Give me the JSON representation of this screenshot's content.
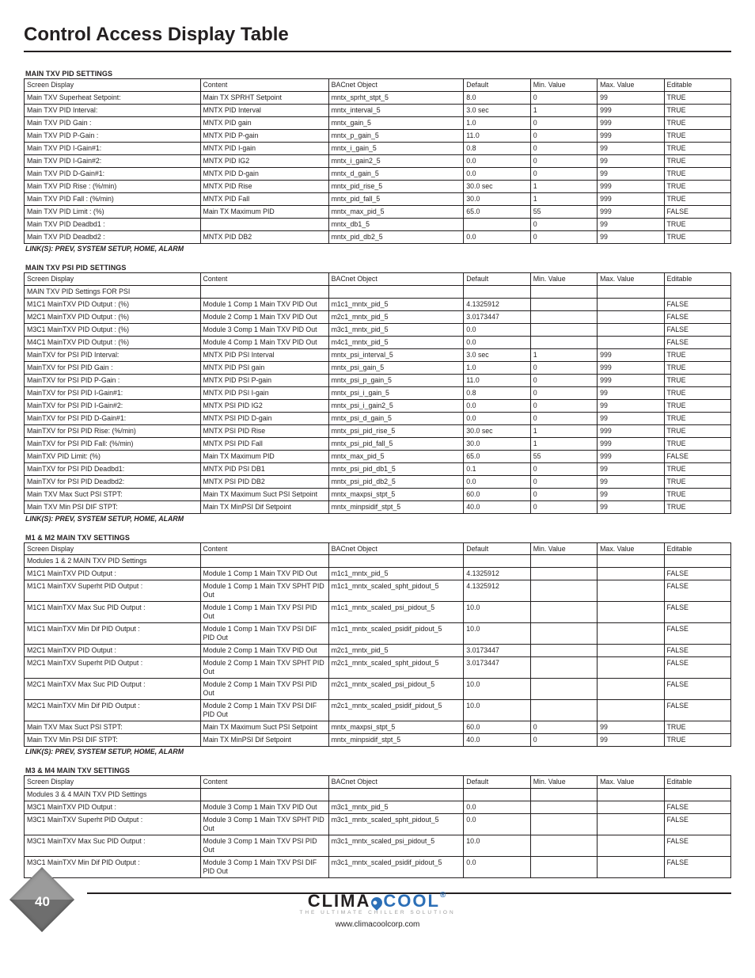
{
  "page": {
    "title": "Control Access Display Table",
    "number": "40",
    "brand": {
      "clima": "CLIMA",
      "cool": "COOL",
      "tag": "THE ULTIMATE CHILLER SOLUTION",
      "url": "www.climacoolcorp.com"
    },
    "link_note": "LINK(S): PREV, SYSTEM SETUP, HOME, ALARM"
  },
  "columns": [
    "Screen Display",
    "Content",
    "BACnet Object",
    "Default",
    "Min. Value",
    "Max. Value",
    "Editable"
  ],
  "tables": [
    {
      "title": "MAIN TXV PID SETTINGS",
      "rows": [
        [
          "Main TXV Superheat Setpoint:",
          "Main TX SPRHT Setpoint",
          "mntx_sprht_stpt_5",
          "8.0",
          "0",
          "99",
          "TRUE"
        ],
        [
          "Main  TXV  PID Interval:",
          "MNTX PID Interval",
          "mntx_interval_5",
          "3.0 sec",
          "1",
          "999",
          "TRUE"
        ],
        [
          "Main  TXV  PID Gain   :",
          "MNTX PID gain",
          "mntx_gain_5",
          "1.0",
          "0",
          "999",
          "TRUE"
        ],
        [
          "Main  TXV  PID P-Gain :",
          "MNTX PID P-gain",
          "mntx_p_gain_5",
          "11.0",
          "0",
          "999",
          "TRUE"
        ],
        [
          "Main  TXV  PID I-Gain#1:",
          "MNTX PID I-gain",
          "mntx_i_gain_5",
          "0.8",
          "0",
          "99",
          "TRUE"
        ],
        [
          "Main  TXV  PID I-Gain#2:",
          "MNTX PID IG2",
          "mntx_i_gain2_5",
          "0.0",
          "0",
          "99",
          "TRUE"
        ],
        [
          "Main  TXV  PID D-Gain#1:",
          "MNTX PID D-gain",
          "mntx_d_gain_5",
          "0.0",
          "0",
          "99",
          "TRUE"
        ],
        [
          "Main  TXV  PID Rise   : (%/min)",
          "MNTX PID Rise",
          "mntx_pid_rise_5",
          "30.0 sec",
          "1",
          "999",
          "TRUE"
        ],
        [
          "Main  TXV  PID Fall   : (%/min)",
          "MNTX PID Fall",
          "mntx_pid_fall_5",
          "30.0",
          "1",
          "999",
          "TRUE"
        ],
        [
          "Main  TXV  PID Limit  : (%)",
          "Main TX Maximum PID",
          "mntx_max_pid_5",
          "65.0",
          "55",
          "999",
          "FALSE"
        ],
        [
          "Main  TXV  PID Deadbd1 :",
          "",
          "mntx_db1_5",
          "",
          "0",
          "99",
          "TRUE"
        ],
        [
          "Main  TXV  PID Deadbd2 :",
          "MNTX PID DB2",
          "mntx_pid_db2_5",
          "0.0",
          "0",
          "99",
          "TRUE"
        ]
      ],
      "footer_link": true
    },
    {
      "title": "MAIN TXV PSI PID SETTINGS",
      "rows": [
        [
          "MAIN TXV PID Settings FOR PSI",
          "",
          "",
          "",
          "",
          "",
          ""
        ],
        [
          "M1C1 MainTXV PID Output : (%)",
          "Module 1 Comp 1 Main TXV PID Out",
          "m1c1_mntx_pid_5",
          "4.1325912",
          "",
          "",
          "FALSE"
        ],
        [
          "M2C1 MainTXV PID Output : (%)",
          "Module 2 Comp 1 Main TXV PID Out",
          "m2c1_mntx_pid_5",
          "3.0173447",
          "",
          "",
          "FALSE"
        ],
        [
          "M3C1 MainTXV PID Output : (%)",
          "Module 3 Comp 1 Main TXV PID Out",
          "m3c1_mntx_pid_5",
          "0.0",
          "",
          "",
          "FALSE"
        ],
        [
          "M4C1 MainTXV PID Output : (%)",
          "Module 4 Comp 1 Main TXV PID Out",
          "m4c1_mntx_pid_5",
          "0.0",
          "",
          "",
          "FALSE"
        ],
        [
          "MainTXV for PSI PID Interval:",
          "MNTX PID PSI Interval",
          "mntx_psi_interval_5",
          "3.0 sec",
          "1",
          "999",
          "TRUE"
        ],
        [
          "MainTXV for PSI PID Gain   :",
          "MNTX PID PSI gain",
          "mntx_psi_gain_5",
          "1.0",
          "0",
          "999",
          "TRUE"
        ],
        [
          "MainTXV for PSI PID P-Gain :",
          "MNTX PID PSI P-gain",
          "mntx_psi_p_gain_5",
          "11.0",
          "0",
          "999",
          "TRUE"
        ],
        [
          "MainTXV for PSI PID I-Gain#1:",
          "MNTX PID PSI I-gain",
          "mntx_psi_i_gain_5",
          "0.8",
          "0",
          "99",
          "TRUE"
        ],
        [
          "MainTXV for PSI PID I-Gain#2:",
          "MNTX PSI PID IG2",
          "mntx_psi_i_gain2_5",
          "0.0",
          "0",
          "99",
          "TRUE"
        ],
        [
          "MainTXV for PSI PID D-Gain#1:",
          "MNTX PSI PID D-gain",
          "mntx_psi_d_gain_5",
          "0.0",
          "0",
          "99",
          "TRUE"
        ],
        [
          "MainTXV for PSI PID Rise: (%/min)",
          "MNTX PSI PID Rise",
          "mntx_psi_pid_rise_5",
          "30.0 sec",
          "1",
          "999",
          "TRUE"
        ],
        [
          "MainTXV for PSI PID Fall: (%/min)",
          "MNTX PSI PID Fall",
          "mntx_psi_pid_fall_5",
          "30.0",
          "1",
          "999",
          "TRUE"
        ],
        [
          "MainTXV PID  Limit: (%)",
          "Main TX Maximum PID",
          "mntx_max_pid_5",
          "65.0",
          "55",
          "999",
          "FALSE"
        ],
        [
          "MainTXV for PSI PID Deadbd1:",
          "MNTX PID PSI DB1",
          "mntx_psi_pid_db1_5",
          "0.1",
          "0",
          "99",
          "TRUE"
        ],
        [
          "MainTXV for PSI PID Deadbd2:",
          "MNTX PSI PID DB2",
          "mntx_psi_pid_db2_5",
          "0.0",
          "0",
          "99",
          "TRUE"
        ],
        [
          "Main TXV Max Suct PSI STPT:",
          "Main TX Maximum Suct PSI Setpoint",
          "mntx_maxpsi_stpt_5",
          "60.0",
          "0",
          "99",
          "TRUE"
        ],
        [
          "Main TXV Min PSI DIF  STPT:",
          "Main TX MinPSI Dif Setpoint",
          "mntx_minpsidif_stpt_5",
          "40.0",
          "0",
          "99",
          "TRUE"
        ]
      ],
      "footer_link": true
    },
    {
      "title": "M1 & M2 MAIN TXV SETTINGS",
      "rows": [
        [
          "Modules 1 & 2 MAIN TXV PID Settings",
          "",
          "",
          "",
          "",
          "",
          ""
        ],
        [
          "M1C1     MainTXV PID Output :",
          "Module 1 Comp 1 Main TXV PID Out",
          "m1c1_mntx_pid_5",
          "4.1325912",
          "",
          "",
          "FALSE"
        ],
        [
          "M1C1 MainTXV Superht PID Output :",
          "Module 1 Comp 1 Main TXV SPHT PID Out",
          "m1c1_mntx_scaled_spht_pidout_5",
          "4.1325912",
          "",
          "",
          "FALSE"
        ],
        [
          "M1C1 MainTXV Max Suc PID Output :",
          "Module 1 Comp 1 Main TXV PSI PID Out",
          "m1c1_mntx_scaled_psi_pidout_5",
          "10.0",
          "",
          "",
          "FALSE"
        ],
        [
          "M1C1 MainTXV Min Dif PID Output :",
          "Module 1 Comp 1 Main TXV PSI DIF PID Out",
          "m1c1_mntx_scaled_psidif_pidout_5",
          "10.0",
          "",
          "",
          "FALSE"
        ],
        [
          "M2C1     MainTXV PID Output :",
          "Module 2 Comp 1 Main TXV PID Out",
          "m2c1_mntx_pid_5",
          "3.0173447",
          "",
          "",
          "FALSE"
        ],
        [
          "M2C1 MainTXV Superht PID Output :",
          "Module 2 Comp 1 Main TXV SPHT PID Out",
          "m2c1_mntx_scaled_spht_pidout_5",
          "3.0173447",
          "",
          "",
          "FALSE"
        ],
        [
          "M2C1 MainTXV Max Suc PID Output :",
          "Module 2 Comp 1 Main TXV PSI PID Out",
          "m2c1_mntx_scaled_psi_pidout_5",
          "10.0",
          "",
          "",
          "FALSE"
        ],
        [
          "M2C1 MainTXV Min Dif PID Output :",
          "Module 2 Comp 1 Main TXV PSI DIF PID Out",
          "m2c1_mntx_scaled_psidif_pidout_5",
          "10.0",
          "",
          "",
          "FALSE"
        ],
        [
          "Main TXV Max Suct PSI STPT:",
          "Main TX Maximum Suct PSI Setpoint",
          "mntx_maxpsi_stpt_5",
          "60.0",
          "0",
          "99",
          "TRUE"
        ],
        [
          "Main TXV Min PSI DIF  STPT:",
          "Main TX MinPSI Dif Setpoint",
          "mntx_minpsidif_stpt_5",
          "40.0",
          "0",
          "99",
          "TRUE"
        ]
      ],
      "footer_link": true
    },
    {
      "title": "M3 & M4 MAIN TXV SETTINGS",
      "rows": [
        [
          "Modules 3 & 4 MAIN TXV PID Settings",
          "",
          "",
          "",
          "",
          "",
          ""
        ],
        [
          "M3C1     MainTXV PID Output :",
          "Module 3 Comp 1 Main TXV PID Out",
          "m3c1_mntx_pid_5",
          "0.0",
          "",
          "",
          "FALSE"
        ],
        [
          "M3C1 MainTXV Superht PID Output :",
          "Module 3 Comp 1 Main TXV SPHT PID Out",
          "m3c1_mntx_scaled_spht_pidout_5",
          "0.0",
          "",
          "",
          "FALSE"
        ],
        [
          "M3C1 MainTXV Max Suc PID Output :",
          "Module 3 Comp 1 Main TXV PSI PID Out",
          "m3c1_mntx_scaled_psi_pidout_5",
          "10.0",
          "",
          "",
          "FALSE"
        ],
        [
          "M3C1 MainTXV Min Dif PID Output :",
          "Module 3 Comp 1 Main TXV PSI DIF PID Out",
          "m3c1_mntx_scaled_psidif_pidout_5",
          "0.0",
          "",
          "",
          "FALSE"
        ]
      ],
      "footer_link": false
    }
  ]
}
